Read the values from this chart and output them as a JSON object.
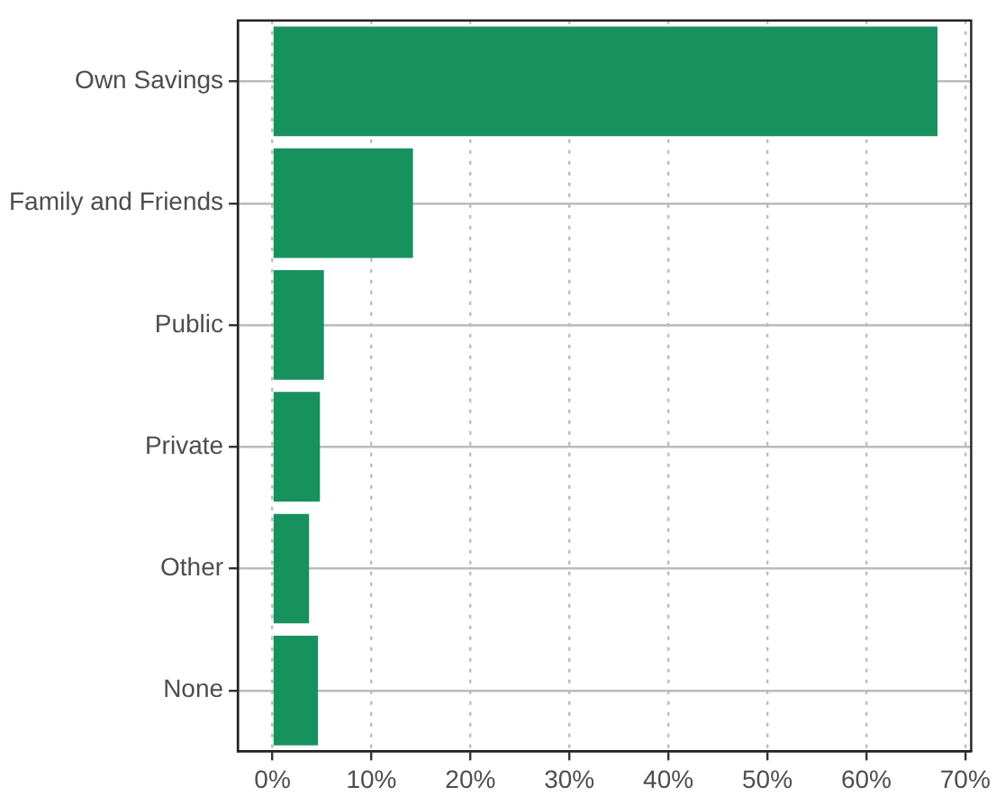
{
  "chart_data": {
    "type": "bar",
    "orientation": "horizontal",
    "categories": [
      "Own Savings",
      "Family and Friends",
      "Public",
      "Private",
      "Other",
      "None"
    ],
    "values": [
      67.2,
      14.2,
      5.2,
      4.8,
      3.7,
      4.6
    ],
    "color": "#17925f",
    "xlim": [
      -3.5,
      70.6
    ],
    "xticks": [
      {
        "value": 0,
        "label": "0%"
      },
      {
        "value": 10,
        "label": "10%"
      },
      {
        "value": 20,
        "label": "20%"
      },
      {
        "value": 30,
        "label": "30%"
      },
      {
        "value": 40,
        "label": "40%"
      },
      {
        "value": 50,
        "label": "50%"
      },
      {
        "value": 60,
        "label": "60%"
      },
      {
        "value": 70,
        "label": "70%"
      }
    ],
    "grid": true,
    "legend": false
  }
}
